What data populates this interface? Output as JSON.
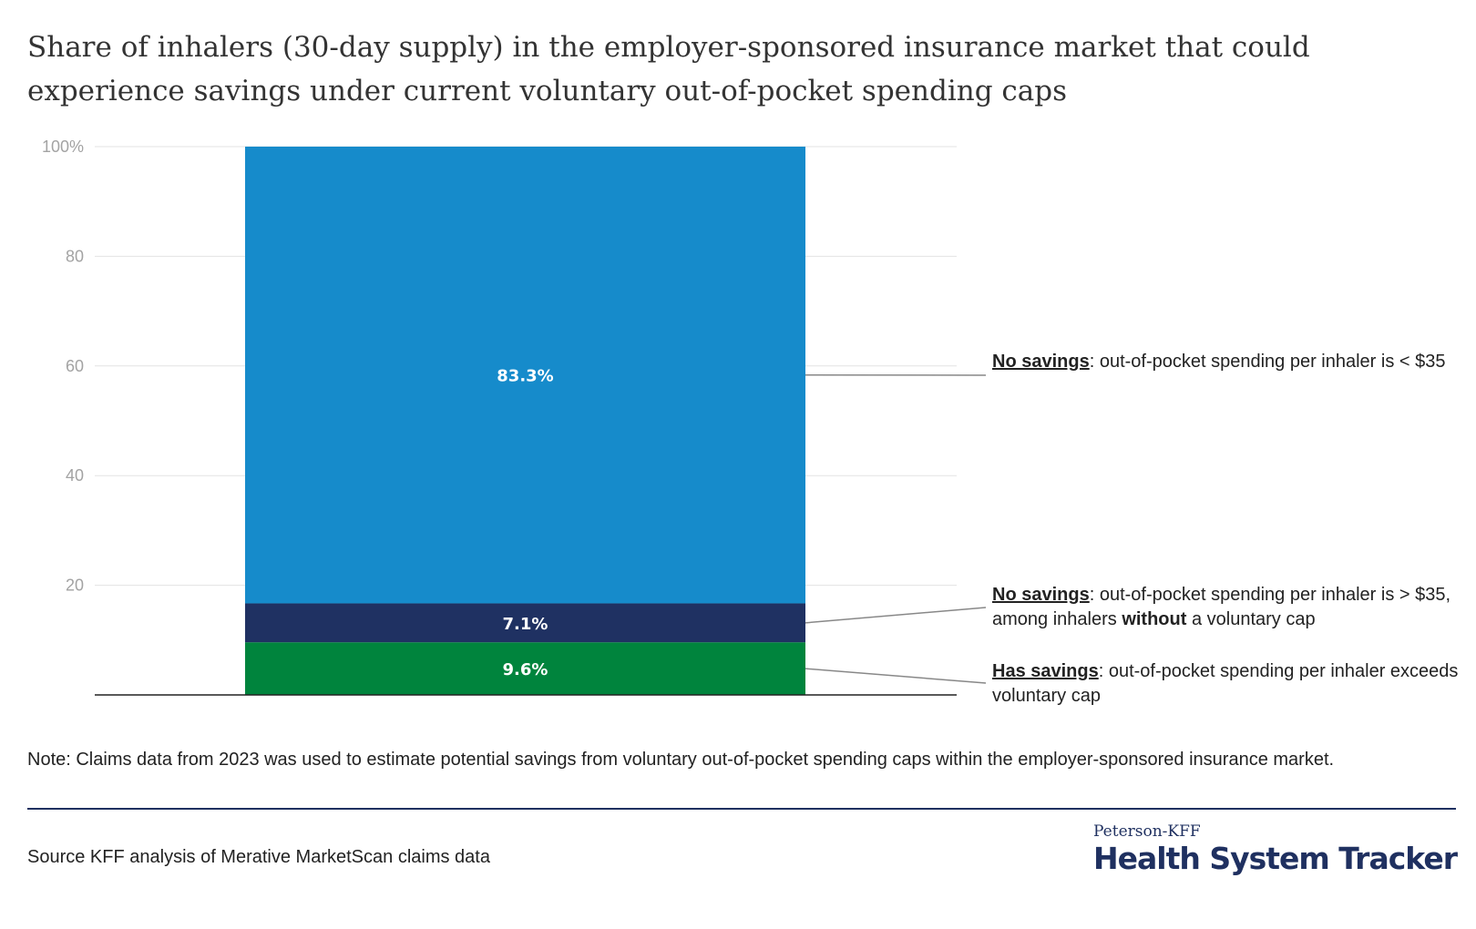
{
  "title": "Share of inhalers (30-day supply) in the employer-sponsored insurance market that could experience savings under current voluntary out-of-pocket spending caps",
  "chart_data": {
    "type": "bar",
    "stacked": true,
    "categories": [
      ""
    ],
    "series": [
      {
        "name": "Has savings: out-of-pocket spending per inhaler exceeds voluntary cap",
        "values": [
          9.6
        ],
        "label": "9.6%",
        "color": "#00843d"
      },
      {
        "name": "No savings: out-of-pocket spending per inhaler is > $35, among inhalers without a voluntary cap",
        "values": [
          7.1
        ],
        "label": "7.1%",
        "color": "#1f3162"
      },
      {
        "name": "No savings: out-of-pocket spending per inhaler is < $35",
        "values": [
          83.3
        ],
        "label": "83.3%",
        "color": "#168bcb"
      }
    ],
    "ylim": [
      0,
      100
    ],
    "yticks": [
      0,
      20,
      40,
      60,
      80,
      100
    ],
    "ytick_labels": [
      "",
      "20",
      "40",
      "60",
      "80",
      "100%"
    ],
    "grid": true,
    "legend": "right (direct annotations)"
  },
  "annotations": [
    {
      "lead": "No savings",
      "text": ": out-of-pocket spending per inhaler is < $35"
    },
    {
      "lead": "No savings",
      "text_before": ": out-of-pocket spending per inhaler is > $35, among inhalers ",
      "emphasis": "without",
      "text_after": " a voluntary cap"
    },
    {
      "lead": "Has savings",
      "text": ": out-of-pocket spending per inhaler exceeds voluntary cap"
    }
  ],
  "note": "Note: Claims data from 2023 was used to estimate potential savings from voluntary out-of-pocket spending caps within the employer-sponsored insurance market.",
  "source": "Source KFF analysis of Merative MarketScan claims data",
  "logo": {
    "top": "Peterson-KFF",
    "main": "Health System Tracker"
  },
  "colors": {
    "grid": "#e3e3e3",
    "axis": "#222222",
    "connector": "#888888",
    "brand": "#1f3060"
  }
}
